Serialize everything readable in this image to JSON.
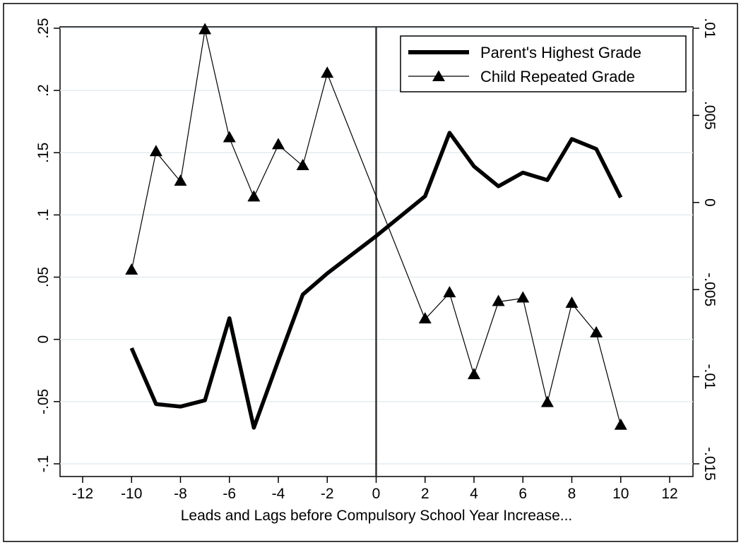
{
  "chart_data": {
    "type": "line",
    "title": "",
    "xlabel": "Leads and Lags before Compulsory School Year Increase...",
    "ylabel_left": "",
    "ylabel_right": "",
    "xlim": [
      -12,
      12
    ],
    "ylim_left": [
      -0.1,
      0.25
    ],
    "ylim_right": [
      -0.015,
      0.01
    ],
    "x_ticks": [
      -12,
      -10,
      -8,
      -6,
      -4,
      -2,
      0,
      2,
      4,
      6,
      8,
      10,
      12
    ],
    "x_tick_labels": [
      "-12",
      "-10",
      "-8",
      "-6",
      "-4",
      "-2",
      "0",
      "2",
      "4",
      "6",
      "8",
      "10",
      "12"
    ],
    "y_left_ticks": [
      -0.1,
      -0.05,
      0,
      0.05,
      0.1,
      0.15,
      0.2,
      0.25
    ],
    "y_left_tick_labels": [
      "-.1",
      "-.05",
      "0",
      ".05",
      ".1",
      ".15",
      ".2",
      ".25"
    ],
    "y_right_ticks": [
      -0.015,
      -0.01,
      -0.005,
      0,
      0.005,
      0.01
    ],
    "y_right_tick_labels": [
      "-.015",
      "-.01",
      "-.005",
      "0",
      ".005",
      ".01"
    ],
    "grid": true,
    "reference_line_x": 0,
    "legend_position": "top-right",
    "series": [
      {
        "name": "Parent's Highest Grade",
        "axis": "left",
        "style": "thick-line",
        "x": [
          -10,
          -9,
          -8,
          -7,
          -6,
          -5,
          -4,
          -3,
          -2,
          0,
          2,
          3,
          4,
          5,
          6,
          7,
          8,
          9,
          10
        ],
        "values": [
          -0.007,
          -0.052,
          -0.054,
          -0.049,
          0.017,
          -0.071,
          -0.017,
          0.036,
          0.053,
          0.083,
          0.115,
          0.166,
          0.139,
          0.123,
          0.134,
          0.128,
          0.161,
          0.153,
          0.114
        ]
      },
      {
        "name": "Child Repeated Grade",
        "axis": "right",
        "style": "thin-line-triangle-markers",
        "x": [
          -10,
          -9,
          -8,
          -7,
          -6,
          -5,
          -4,
          -3,
          -2,
          2,
          3,
          4,
          5,
          6,
          7,
          8,
          9,
          10
        ],
        "values": [
          -0.0039,
          0.0029,
          0.0012,
          0.0099,
          0.0037,
          0.0003,
          0.0033,
          0.0021,
          0.0074,
          -0.0067,
          -0.0052,
          -0.0099,
          -0.0057,
          -0.0055,
          -0.0115,
          -0.0058,
          -0.0075,
          -0.0128
        ]
      }
    ]
  }
}
